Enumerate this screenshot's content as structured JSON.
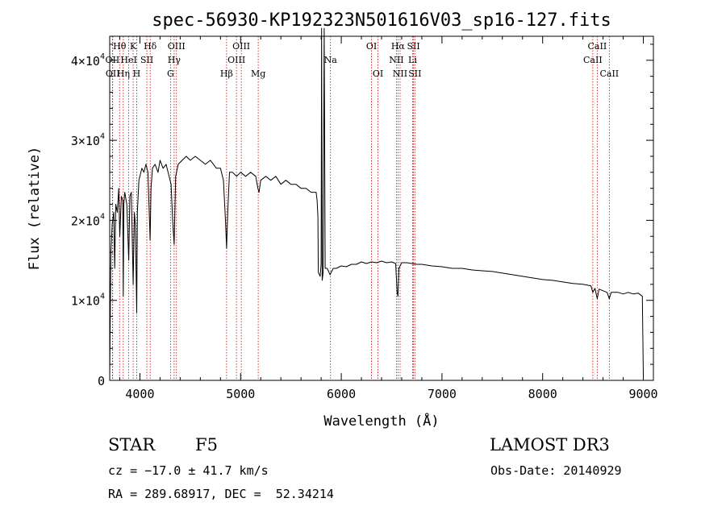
{
  "chart_data": {
    "type": "line",
    "title": "spec-56930-KP192323N501616V03_sp16-127.fits",
    "xlabel": "Wavelength (Å)",
    "ylabel": "Flux (relative)",
    "xlim": [
      3700,
      9100
    ],
    "ylim": [
      0,
      43000
    ],
    "x_ticks": [
      4000,
      5000,
      6000,
      7000,
      8000,
      9000
    ],
    "y_ticks": [
      {
        "value": 0,
        "base": "0",
        "exp": ""
      },
      {
        "value": 10000,
        "base": "1×10",
        "exp": "4"
      },
      {
        "value": 20000,
        "base": "2×10",
        "exp": "4"
      },
      {
        "value": 30000,
        "base": "3×10",
        "exp": "4"
      },
      {
        "value": 40000,
        "base": "4×10",
        "exp": "4"
      }
    ],
    "series": [
      {
        "name": "flux",
        "points": [
          [
            3700,
            500
          ],
          [
            3705,
            7000
          ],
          [
            3712,
            16000
          ],
          [
            3725,
            19500
          ],
          [
            3740,
            21000
          ],
          [
            3750,
            14000
          ],
          [
            3760,
            22000
          ],
          [
            3775,
            21000
          ],
          [
            3790,
            24000
          ],
          [
            3800,
            18000
          ],
          [
            3815,
            23000
          ],
          [
            3830,
            22500
          ],
          [
            3835,
            10500
          ],
          [
            3840,
            22000
          ],
          [
            3850,
            23500
          ],
          [
            3870,
            22000
          ],
          [
            3889,
            15000
          ],
          [
            3900,
            23000
          ],
          [
            3915,
            23500
          ],
          [
            3933,
            12000
          ],
          [
            3945,
            21000
          ],
          [
            3955,
            19500
          ],
          [
            3968,
            8500
          ],
          [
            3975,
            21000
          ],
          [
            3990,
            25000
          ],
          [
            4000,
            25500
          ],
          [
            4020,
            26500
          ],
          [
            4040,
            26000
          ],
          [
            4060,
            27000
          ],
          [
            4080,
            26000
          ],
          [
            4090,
            22000
          ],
          [
            4101,
            17500
          ],
          [
            4110,
            24000
          ],
          [
            4125,
            26500
          ],
          [
            4150,
            27000
          ],
          [
            4180,
            26000
          ],
          [
            4200,
            27500
          ],
          [
            4230,
            26500
          ],
          [
            4260,
            27000
          ],
          [
            4290,
            25500
          ],
          [
            4310,
            24500
          ],
          [
            4325,
            20000
          ],
          [
            4340,
            17000
          ],
          [
            4355,
            25500
          ],
          [
            4380,
            27000
          ],
          [
            4420,
            27500
          ],
          [
            4460,
            28000
          ],
          [
            4500,
            27500
          ],
          [
            4550,
            28000
          ],
          [
            4600,
            27500
          ],
          [
            4650,
            27000
          ],
          [
            4700,
            27500
          ],
          [
            4760,
            26500
          ],
          [
            4800,
            26500
          ],
          [
            4830,
            25000
          ],
          [
            4850,
            20000
          ],
          [
            4861,
            16500
          ],
          [
            4872,
            21000
          ],
          [
            4890,
            26000
          ],
          [
            4920,
            26000
          ],
          [
            4960,
            25500
          ],
          [
            5000,
            26000
          ],
          [
            5050,
            25500
          ],
          [
            5100,
            26000
          ],
          [
            5150,
            25500
          ],
          [
            5172,
            24000
          ],
          [
            5183,
            23500
          ],
          [
            5200,
            25000
          ],
          [
            5250,
            25500
          ],
          [
            5300,
            25000
          ],
          [
            5350,
            25500
          ],
          [
            5400,
            24500
          ],
          [
            5450,
            25000
          ],
          [
            5500,
            24500
          ],
          [
            5550,
            24500
          ],
          [
            5600,
            24000
          ],
          [
            5650,
            24000
          ],
          [
            5700,
            23500
          ],
          [
            5750,
            23500
          ],
          [
            5760,
            22500
          ],
          [
            5768,
            20500
          ],
          [
            5772,
            13500
          ],
          [
            5790,
            13000
          ],
          [
            5800,
            14500
          ],
          [
            5805,
            44000
          ],
          [
            5810,
            12500
          ],
          [
            5820,
            13500
          ],
          [
            5830,
            44000
          ],
          [
            5840,
            14000
          ],
          [
            5860,
            14000
          ],
          [
            5889,
            13200
          ],
          [
            5896,
            13400
          ],
          [
            5920,
            14000
          ],
          [
            5950,
            14000
          ],
          [
            6000,
            14300
          ],
          [
            6050,
            14200
          ],
          [
            6100,
            14500
          ],
          [
            6150,
            14500
          ],
          [
            6200,
            14800
          ],
          [
            6250,
            14600
          ],
          [
            6300,
            14800
          ],
          [
            6350,
            14700
          ],
          [
            6400,
            14900
          ],
          [
            6450,
            14700
          ],
          [
            6500,
            14800
          ],
          [
            6540,
            14600
          ],
          [
            6555,
            11000
          ],
          [
            6563,
            10500
          ],
          [
            6572,
            14000
          ],
          [
            6600,
            14700
          ],
          [
            6650,
            14700
          ],
          [
            6700,
            14600
          ],
          [
            6750,
            14500
          ],
          [
            6800,
            14500
          ],
          [
            6900,
            14300
          ],
          [
            7000,
            14200
          ],
          [
            7100,
            14000
          ],
          [
            7200,
            14000
          ],
          [
            7300,
            13800
          ],
          [
            7400,
            13700
          ],
          [
            7500,
            13600
          ],
          [
            7600,
            13400
          ],
          [
            7700,
            13200
          ],
          [
            7800,
            13000
          ],
          [
            7900,
            12800
          ],
          [
            8000,
            12600
          ],
          [
            8100,
            12500
          ],
          [
            8200,
            12300
          ],
          [
            8300,
            12100
          ],
          [
            8400,
            12000
          ],
          [
            8480,
            11800
          ],
          [
            8498,
            11000
          ],
          [
            8520,
            11500
          ],
          [
            8542,
            10200
          ],
          [
            8560,
            11400
          ],
          [
            8600,
            11200
          ],
          [
            8640,
            11000
          ],
          [
            8662,
            10200
          ],
          [
            8680,
            11000
          ],
          [
            8750,
            11000
          ],
          [
            8800,
            10800
          ],
          [
            8850,
            11000
          ],
          [
            8900,
            10800
          ],
          [
            8950,
            10900
          ],
          [
            8990,
            10500
          ],
          [
            9000,
            500
          ]
        ]
      }
    ],
    "lines": [
      {
        "name": "Hθ",
        "wave": 3798,
        "row": 0
      },
      {
        "name": "OII",
        "wave": 3727,
        "row": 1
      },
      {
        "name": "OII",
        "wave": 3730,
        "row": 2
      },
      {
        "name": "Hη",
        "wave": 3835,
        "row": 2
      },
      {
        "name": "HeI",
        "wave": 3889,
        "row": 1
      },
      {
        "name": "K",
        "wave": 3933,
        "row": 0
      },
      {
        "name": "H",
        "wave": 3968,
        "row": 2
      },
      {
        "name": "SII",
        "wave": 4069,
        "row": 1
      },
      {
        "name": "Hδ",
        "wave": 4102,
        "row": 0
      },
      {
        "name": "OIII",
        "wave": 4363,
        "row": 0
      },
      {
        "name": "Hγ",
        "wave": 4340,
        "row": 1
      },
      {
        "name": "G",
        "wave": 4304,
        "row": 2
      },
      {
        "name": "Hβ",
        "wave": 4861,
        "row": 2
      },
      {
        "name": "OIII",
        "wave": 5007,
        "row": 0
      },
      {
        "name": "OIII",
        "wave": 4959,
        "row": 1
      },
      {
        "name": "Mg",
        "wave": 5175,
        "row": 2
      },
      {
        "name": "Na",
        "wave": 5893,
        "row": 1
      },
      {
        "name": "OI",
        "wave": 6300,
        "row": 0
      },
      {
        "name": "OI",
        "wave": 6364,
        "row": 2
      },
      {
        "name": "Hα",
        "wave": 6563,
        "row": 0
      },
      {
        "name": "NII",
        "wave": 6548,
        "row": 1
      },
      {
        "name": "NII",
        "wave": 6584,
        "row": 2
      },
      {
        "name": "SII",
        "wave": 6717,
        "row": 0
      },
      {
        "name": "Li",
        "wave": 6708,
        "row": 1
      },
      {
        "name": "SII",
        "wave": 6731,
        "row": 2
      },
      {
        "name": "CaII",
        "wave": 8542,
        "row": 0
      },
      {
        "name": "CaII",
        "wave": 8498,
        "row": 1
      },
      {
        "name": "CaII",
        "wave": 8662,
        "row": 2
      }
    ],
    "line_color": "#cc0000",
    "curve_color": "#000000"
  },
  "info": {
    "object_class": "STAR",
    "subclass": "F5",
    "survey": "LAMOST DR3",
    "cz": "cz = −17.0 ± 41.7 km/s",
    "obs_date": "Obs-Date: 20140929",
    "coords": "RA = 289.68917, DEC =  52.34214"
  }
}
